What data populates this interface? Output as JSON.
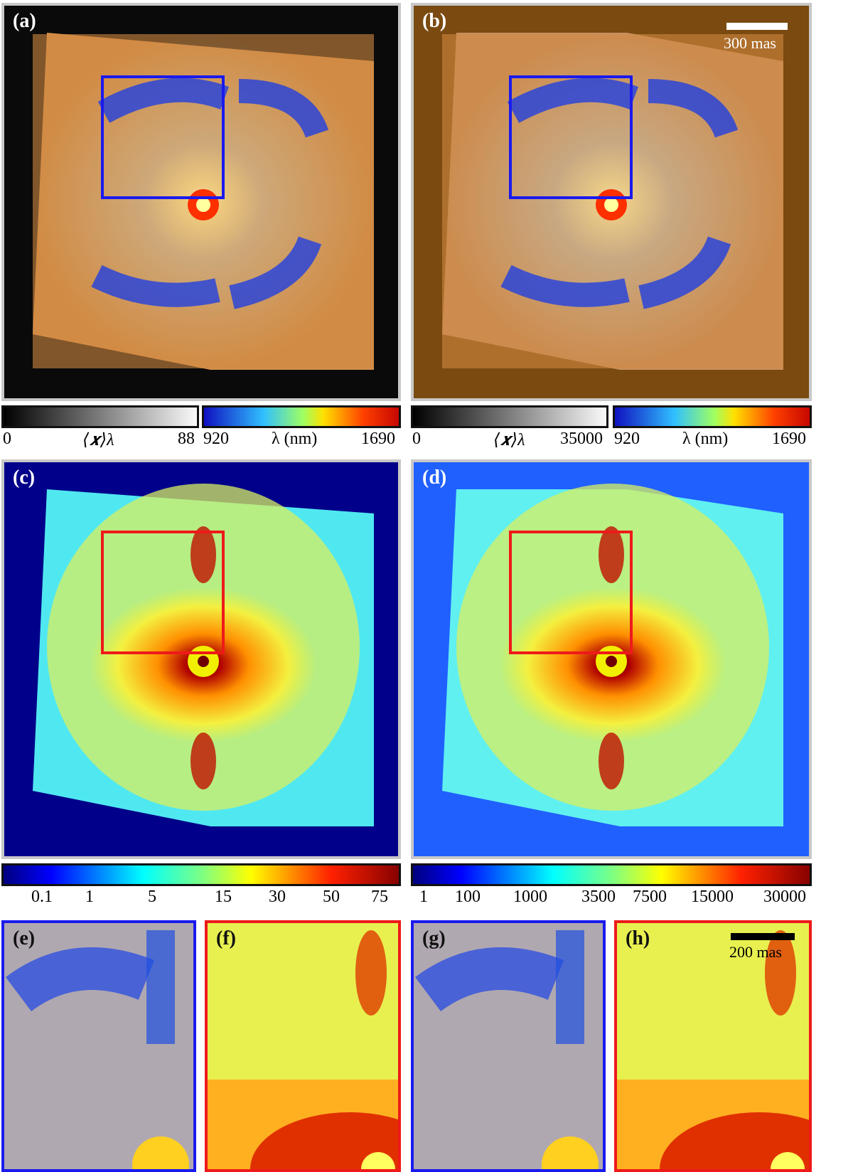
{
  "panels": {
    "a": {
      "label": "(a)"
    },
    "b": {
      "label": "(b)",
      "scale_text": "300 mas"
    },
    "c": {
      "label": "(c)"
    },
    "d": {
      "label": "(d)"
    },
    "e": {
      "label": "(e)"
    },
    "f": {
      "label": "(f)"
    },
    "g": {
      "label": "(g)"
    },
    "h": {
      "label": "(h)",
      "scale_text": "200 mas"
    }
  },
  "colorbars_top": {
    "left": {
      "gray_min": "0",
      "gray_label": "⟨𝒙⟩λ",
      "gray_max": "88",
      "lambda_min": "920",
      "lambda_label": "λ (nm)",
      "lambda_max": "1690"
    },
    "right": {
      "gray_min": "0",
      "gray_label": "⟨𝒙⟩λ",
      "gray_max": "35000",
      "lambda_min": "920",
      "lambda_label": "λ (nm)",
      "lambda_max": "1690"
    }
  },
  "colorbars_mid": {
    "left_ticks": [
      "0.1",
      "1",
      "5",
      "15",
      "30",
      "50",
      "75"
    ],
    "right_ticks": [
      "1",
      "100",
      "1000",
      "3500",
      "7500",
      "15000",
      "30000"
    ]
  },
  "colors": {
    "box_blue": "#1a1aee",
    "box_red": "#ee1a1a",
    "frame_gray": "#c8c8c8"
  }
}
